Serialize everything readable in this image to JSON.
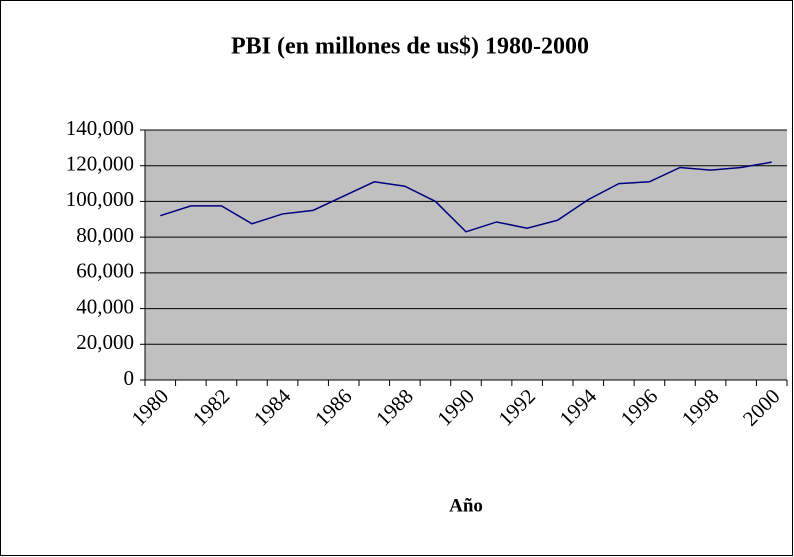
{
  "chart_data": {
    "type": "line",
    "title": "PBI (en millones de us$) 1980-2000",
    "x_label": "Año",
    "categories": [
      "1980",
      null,
      "1982",
      null,
      "1984",
      null,
      "1986",
      null,
      "1988",
      null,
      "1990",
      null,
      "1992",
      null,
      "1994",
      null,
      "1996",
      null,
      "1998",
      null,
      "2000"
    ],
    "values": [
      92000,
      97500,
      97500,
      87500,
      93000,
      95000,
      103000,
      111000,
      108500,
      100000,
      83000,
      88500,
      85000,
      89500,
      101000,
      110000,
      111000,
      119000,
      117500,
      119000,
      122000
    ],
    "color": "#000080",
    "ylim": [
      0,
      140000
    ],
    "yticks": [
      0,
      {
        "value": 20000,
        "label": "20,000"
      },
      {
        "value": 40000,
        "label": "40,000"
      },
      {
        "value": 60000,
        "label": "60,000"
      },
      {
        "value": 80000,
        "label": "80,000"
      },
      {
        "value": 100000,
        "label": "100,000"
      },
      {
        "value": 120000,
        "label": "120,000"
      },
      {
        "value": 140000,
        "label": "140,000"
      }
    ],
    "grid": true
  }
}
